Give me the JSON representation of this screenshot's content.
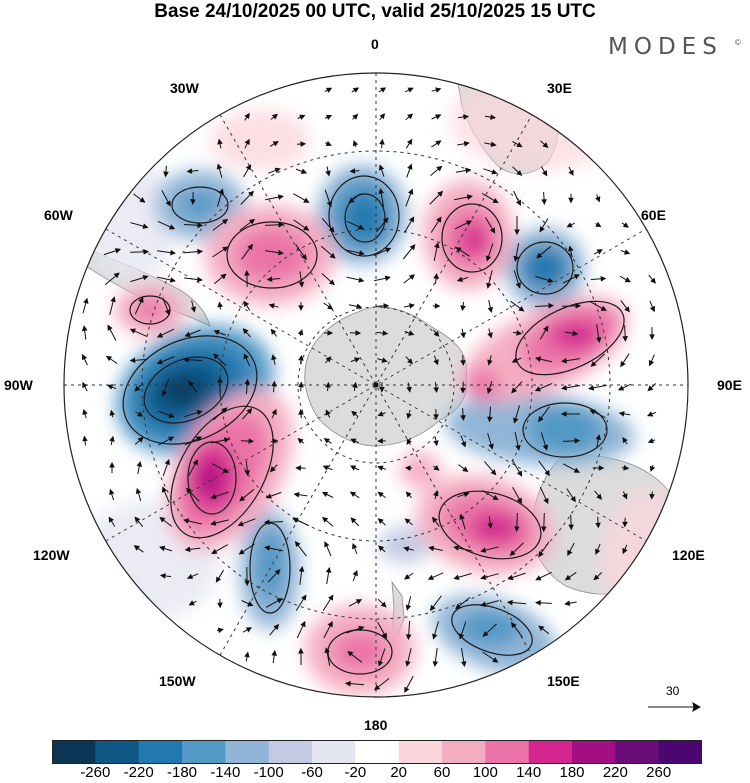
{
  "title": "Base 24/10/2025 00 UTC, valid 25/10/2025 15 UTC",
  "brand": "MODES",
  "brand_mark": "©",
  "longitude_labels": {
    "lon_0": "0",
    "lon_30e": "30E",
    "lon_60e": "60E",
    "lon_90e": "90E",
    "lon_120e": "120E",
    "lon_150e": "150E",
    "lon_180": "180",
    "lon_150w": "150W",
    "lon_120w": "120W",
    "lon_90w": "90W",
    "lon_60w": "60W",
    "lon_30w": "30W"
  },
  "vector_reference": {
    "value": "30"
  },
  "colorbar": {
    "labels": [
      "-260",
      "-220",
      "-180",
      "-140",
      "-100",
      "-60",
      "-20",
      "20",
      "60",
      "100",
      "140",
      "180",
      "220",
      "260"
    ],
    "colors": [
      "#0b3553",
      "#0f5785",
      "#2179b0",
      "#5399c6",
      "#91b5d6",
      "#c2cbe3",
      "#e6e6f1",
      "#ffffff",
      "#fbd6dd",
      "#f4aec3",
      "#eb73a8",
      "#d4268e",
      "#a20f82",
      "#6a0d79",
      "#4b0670"
    ]
  },
  "colors": {
    "land": "#dcdcdc",
    "coastline": "#8a8a8a",
    "grid": "#333333"
  }
}
